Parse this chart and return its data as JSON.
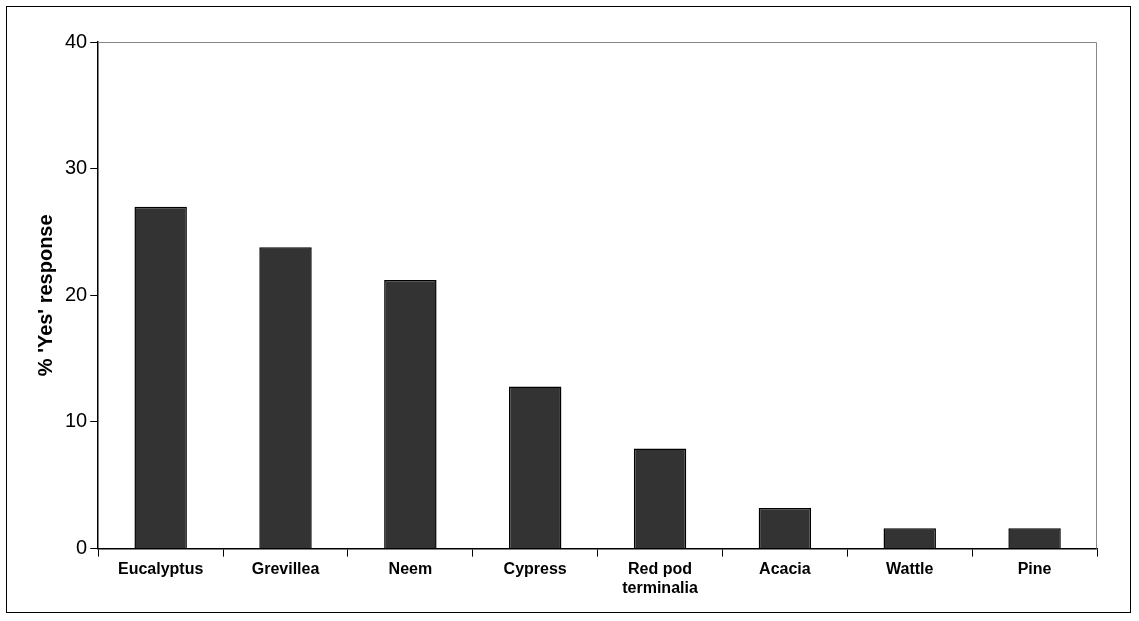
{
  "chart_data": {
    "type": "bar",
    "ylabel": "% 'Yes' response",
    "categories": [
      "Eucalyptus",
      "Grevillea",
      "Neem",
      "Cypress",
      "Red pod terminalia",
      "Acacia",
      "Wattle",
      "Pine"
    ],
    "values": [
      27.0,
      23.8,
      21.2,
      12.8,
      7.9,
      3.2,
      1.6,
      1.6
    ],
    "color": "#333333",
    "ylim": [
      0,
      40
    ],
    "yticks": [
      0,
      10,
      20,
      30,
      40
    ],
    "grid": false,
    "legend": false
  }
}
